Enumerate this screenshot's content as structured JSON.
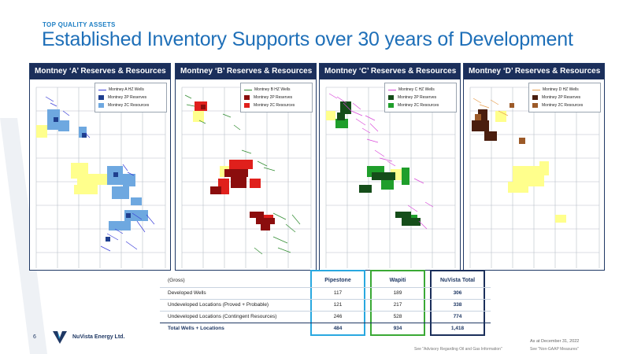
{
  "header": {
    "kicker": "TOP QUALITY ASSETS",
    "title": "Established Inventory Supports over 30 years of Development"
  },
  "colors": {
    "navy": "#1b2f5b",
    "title_blue": "#1e6fb8",
    "pipestone_box": "#29a8e0",
    "wapiti_box": "#3aa935",
    "total_box": "#1b2f5b",
    "reserves_2c_yellow": "#ffff8c"
  },
  "panels": [
    {
      "title": "Montney ‘A’ Reserves & Resources",
      "legend": [
        "Montney A HZ Wells",
        "Montney 2P Reserves",
        "Montney 2C Resources"
      ],
      "colors": {
        "wells": "#3b3fd8",
        "p2": "#1f3f8f",
        "c2": "#6ea8e0"
      }
    },
    {
      "title": "Montney ‘B’ Reserves & Resources",
      "legend": [
        "Montney B HZ Wells",
        "Montney 2P Reserves",
        "Montney 2C Resources"
      ],
      "colors": {
        "wells": "#2e8b2e",
        "p2": "#8b0d0d",
        "c2": "#e0201c"
      }
    },
    {
      "title": "Montney ‘C’ Reserves & Resources",
      "legend": [
        "Montney C HZ Wells",
        "Montney 2P Reserves",
        "Montney 2C Resources"
      ],
      "colors": {
        "wells": "#d94ad9",
        "p2": "#154d1a",
        "c2": "#1f9e2b"
      }
    },
    {
      "title": "Montney ‘D’ Reserves & Resources",
      "legend": [
        "Montney D HZ Wells",
        "Montney 2P Reserves",
        "Montney 2C Resources"
      ],
      "colors": {
        "wells": "#e8a050",
        "p2": "#4a1e0e",
        "c2": "#9c5a28"
      }
    }
  ],
  "table": {
    "gross_label": "(Gross)",
    "columns": [
      "Pipestone",
      "Wapiti",
      "NuVista Total"
    ],
    "rows": [
      {
        "label": "Developed Wells",
        "values": [
          "117",
          "189",
          "306"
        ]
      },
      {
        "label": "Undeveloped Locations (Proved + Probable)",
        "values": [
          "121",
          "217",
          "338"
        ]
      },
      {
        "label": "Undeveloped Locations (Contingent Resources)",
        "values": [
          "246",
          "528",
          "774"
        ]
      },
      {
        "label": "Total Wells + Locations",
        "values": [
          "484",
          "934",
          "1,418"
        ]
      }
    ]
  },
  "footer": {
    "page_number": "6",
    "company": "NuVista Energy Ltd.",
    "as_of": "As at December 31, 2022",
    "note_advisory": "See \"Advisory Regarding Oil and Gas Information\"",
    "note_nongaap": "See \"Non-GAAP Measures\""
  }
}
